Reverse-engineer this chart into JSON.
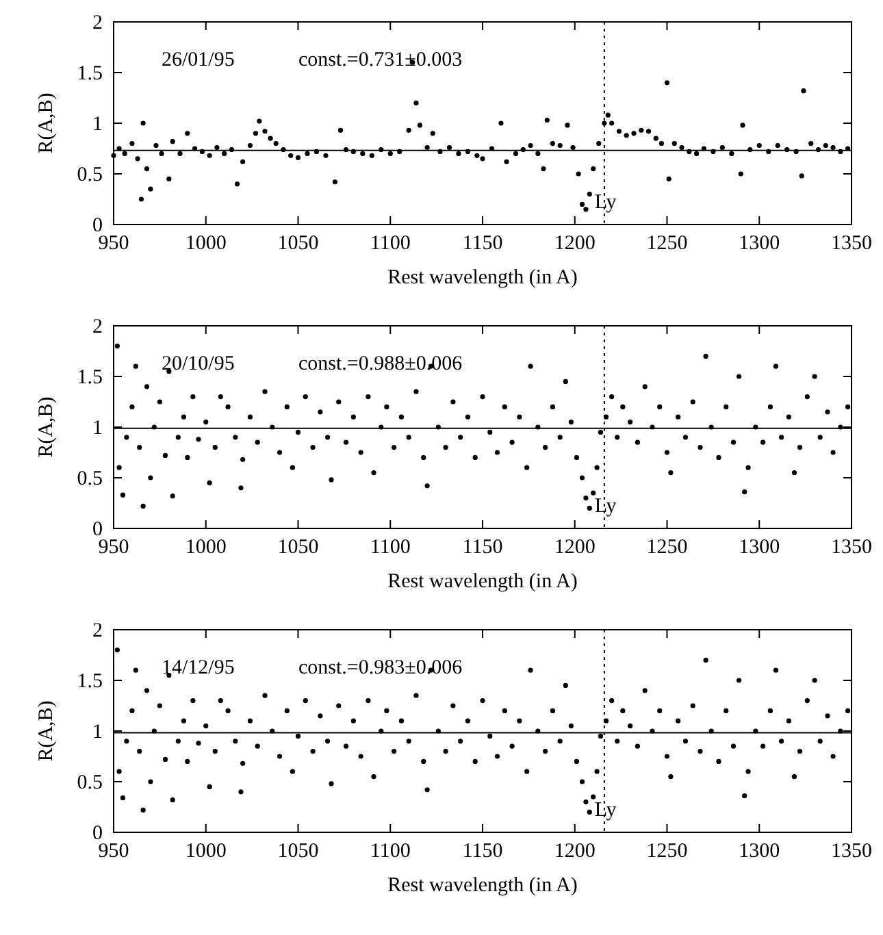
{
  "chart_data": [
    {
      "type": "scatter",
      "xlabel": "Rest wavelength (in A)",
      "ylabel": "R(A,B)",
      "xlim": [
        950,
        1350
      ],
      "ylim": [
        0,
        2
      ],
      "xticks": [
        950,
        1000,
        1050,
        1100,
        1150,
        1200,
        1250,
        1300,
        1350
      ],
      "yticks": [
        0,
        0.5,
        1,
        1.5,
        2
      ],
      "marker": "circle",
      "annotations": [
        "26/01/95",
        "const.=0.731±0.003"
      ],
      "ref_lines": [
        {
          "axis": "y",
          "value": 0.731,
          "line_style": "solid"
        },
        {
          "axis": "x",
          "value": 1216,
          "label": "Ly",
          "line_style": "dotted"
        }
      ],
      "series": [
        {
          "color": "#000000",
          "x": [
            950,
            953,
            956,
            960,
            963,
            965,
            966,
            968,
            970,
            973,
            976,
            980,
            982,
            986,
            990,
            994,
            998,
            1002,
            1006,
            1010,
            1014,
            1017,
            1020,
            1024,
            1027,
            1029,
            1032,
            1035,
            1038,
            1042,
            1046,
            1050,
            1055,
            1060,
            1065,
            1070,
            1073,
            1076,
            1080,
            1085,
            1090,
            1095,
            1100,
            1105,
            1110,
            1112,
            1114,
            1116,
            1120,
            1123,
            1127,
            1132,
            1137,
            1142,
            1147,
            1150,
            1155,
            1160,
            1163,
            1168,
            1172,
            1176,
            1180,
            1183,
            1185,
            1188,
            1192,
            1196,
            1199,
            1202,
            1204,
            1206,
            1208,
            1210,
            1213,
            1216,
            1218,
            1220,
            1224,
            1228,
            1232,
            1236,
            1240,
            1244,
            1247,
            1250,
            1251,
            1254,
            1258,
            1262,
            1266,
            1270,
            1275,
            1280,
            1285,
            1290,
            1291,
            1295,
            1300,
            1305,
            1310,
            1315,
            1320,
            1323,
            1324,
            1328,
            1332,
            1336,
            1340,
            1344,
            1348
          ],
          "values": [
            0.68,
            0.75,
            0.7,
            0.8,
            0.65,
            0.25,
            1.0,
            0.55,
            0.35,
            0.78,
            0.7,
            0.45,
            0.82,
            0.7,
            0.9,
            0.75,
            0.72,
            0.68,
            0.76,
            0.7,
            0.74,
            0.4,
            0.62,
            0.78,
            0.9,
            1.02,
            0.92,
            0.85,
            0.8,
            0.74,
            0.68,
            0.66,
            0.7,
            0.72,
            0.68,
            0.42,
            0.93,
            0.74,
            0.72,
            0.7,
            0.68,
            0.74,
            0.7,
            0.72,
            0.93,
            1.6,
            1.2,
            0.98,
            0.76,
            0.9,
            0.72,
            0.76,
            0.7,
            0.72,
            0.68,
            0.65,
            0.75,
            1.0,
            0.62,
            0.7,
            0.74,
            0.78,
            0.7,
            0.55,
            1.03,
            0.8,
            0.78,
            0.98,
            0.76,
            0.5,
            0.2,
            0.15,
            0.3,
            0.55,
            0.8,
            1.0,
            1.08,
            1.0,
            0.92,
            0.88,
            0.9,
            0.93,
            0.92,
            0.85,
            0.8,
            1.4,
            0.45,
            0.8,
            0.76,
            0.72,
            0.7,
            0.75,
            0.72,
            0.76,
            0.7,
            0.5,
            0.98,
            0.74,
            0.78,
            0.72,
            0.78,
            0.74,
            0.72,
            0.48,
            1.32,
            0.8,
            0.74,
            0.78,
            0.76,
            0.72,
            0.75
          ]
        }
      ]
    },
    {
      "type": "scatter",
      "xlabel": "Rest wavelength (in A)",
      "ylabel": "R(A,B)",
      "xlim": [
        950,
        1350
      ],
      "ylim": [
        0,
        2
      ],
      "xticks": [
        950,
        1000,
        1050,
        1100,
        1150,
        1200,
        1250,
        1300,
        1350
      ],
      "yticks": [
        0,
        0.5,
        1,
        1.5,
        2
      ],
      "marker": "circle",
      "annotations": [
        "20/10/95",
        "const.=0.988±0.006"
      ],
      "ref_lines": [
        {
          "axis": "y",
          "value": 0.988,
          "line_style": "solid"
        },
        {
          "axis": "x",
          "value": 1216,
          "label": "Ly",
          "line_style": "dotted"
        }
      ],
      "series": [
        {
          "color": "#000000",
          "x": [
            952,
            953,
            955,
            957,
            960,
            962,
            964,
            966,
            968,
            970,
            972,
            975,
            978,
            980,
            982,
            985,
            988,
            990,
            993,
            996,
            1000,
            1002,
            1005,
            1008,
            1012,
            1016,
            1019,
            1020,
            1024,
            1028,
            1032,
            1036,
            1040,
            1044,
            1047,
            1050,
            1054,
            1058,
            1062,
            1066,
            1068,
            1072,
            1076,
            1080,
            1084,
            1088,
            1091,
            1095,
            1098,
            1102,
            1106,
            1110,
            1114,
            1118,
            1120,
            1122,
            1126,
            1130,
            1134,
            1138,
            1142,
            1146,
            1150,
            1154,
            1158,
            1162,
            1166,
            1170,
            1174,
            1176,
            1180,
            1184,
            1188,
            1192,
            1195,
            1198,
            1201,
            1204,
            1206,
            1208,
            1210,
            1212,
            1214,
            1217,
            1220,
            1223,
            1226,
            1230,
            1234,
            1238,
            1242,
            1246,
            1250,
            1252,
            1256,
            1260,
            1264,
            1268,
            1271,
            1274,
            1278,
            1282,
            1286,
            1289,
            1292,
            1294,
            1298,
            1302,
            1306,
            1309,
            1312,
            1316,
            1319,
            1322,
            1326,
            1330,
            1333,
            1337,
            1340,
            1344,
            1348
          ],
          "values": [
            1.8,
            0.6,
            0.33,
            0.9,
            1.2,
            1.6,
            0.8,
            0.22,
            1.4,
            0.5,
            1.0,
            1.25,
            0.72,
            1.55,
            0.32,
            0.9,
            1.1,
            0.7,
            1.3,
            0.88,
            1.05,
            0.45,
            0.8,
            1.3,
            1.2,
            0.9,
            0.4,
            0.68,
            1.1,
            0.85,
            1.35,
            1.0,
            0.75,
            1.2,
            0.6,
            0.95,
            1.3,
            0.8,
            1.15,
            0.9,
            0.48,
            1.25,
            0.85,
            1.1,
            0.75,
            1.3,
            0.55,
            1.0,
            1.2,
            0.8,
            1.1,
            0.9,
            1.35,
            0.7,
            0.42,
            1.6,
            1.0,
            0.8,
            1.25,
            0.9,
            1.1,
            0.7,
            1.3,
            0.95,
            0.75,
            1.2,
            0.85,
            1.1,
            0.6,
            1.6,
            1.0,
            0.8,
            1.2,
            0.9,
            1.45,
            1.05,
            0.7,
            0.5,
            0.3,
            0.2,
            0.35,
            0.6,
            0.95,
            1.1,
            1.3,
            0.9,
            1.2,
            1.05,
            0.85,
            1.4,
            1.0,
            1.2,
            0.75,
            0.55,
            1.1,
            0.9,
            1.25,
            0.8,
            1.7,
            1.0,
            0.7,
            1.2,
            0.85,
            1.5,
            0.36,
            0.6,
            1.0,
            0.85,
            1.2,
            1.6,
            0.9,
            1.1,
            0.55,
            0.8,
            1.3,
            1.5,
            0.9,
            1.15,
            0.75,
            1.0,
            1.2
          ]
        }
      ]
    },
    {
      "type": "scatter",
      "xlabel": "Rest wavelength (in A)",
      "ylabel": "R(A,B)",
      "xlim": [
        950,
        1350
      ],
      "ylim": [
        0,
        2
      ],
      "xticks": [
        950,
        1000,
        1050,
        1100,
        1150,
        1200,
        1250,
        1300,
        1350
      ],
      "yticks": [
        0,
        0.5,
        1,
        1.5,
        2
      ],
      "marker": "circle",
      "annotations": [
        "14/12/95",
        "const.=0.983±0.006"
      ],
      "ref_lines": [
        {
          "axis": "y",
          "value": 0.983,
          "line_style": "solid"
        },
        {
          "axis": "x",
          "value": 1216,
          "label": "Ly",
          "line_style": "dotted"
        }
      ],
      "series": [
        {
          "color": "#000000",
          "x": [
            952,
            953,
            955,
            957,
            960,
            962,
            964,
            966,
            968,
            970,
            972,
            975,
            978,
            980,
            982,
            985,
            988,
            990,
            993,
            996,
            1000,
            1002,
            1005,
            1008,
            1012,
            1016,
            1019,
            1020,
            1024,
            1028,
            1032,
            1036,
            1040,
            1044,
            1047,
            1050,
            1054,
            1058,
            1062,
            1066,
            1068,
            1072,
            1076,
            1080,
            1084,
            1088,
            1091,
            1095,
            1098,
            1102,
            1106,
            1110,
            1114,
            1118,
            1120,
            1122,
            1126,
            1130,
            1134,
            1138,
            1142,
            1146,
            1150,
            1154,
            1158,
            1162,
            1166,
            1170,
            1174,
            1176,
            1180,
            1184,
            1188,
            1192,
            1195,
            1198,
            1201,
            1204,
            1206,
            1208,
            1210,
            1212,
            1214,
            1217,
            1220,
            1223,
            1226,
            1230,
            1234,
            1238,
            1242,
            1246,
            1250,
            1252,
            1256,
            1260,
            1264,
            1268,
            1271,
            1274,
            1278,
            1282,
            1286,
            1289,
            1292,
            1294,
            1298,
            1302,
            1306,
            1309,
            1312,
            1316,
            1319,
            1322,
            1326,
            1330,
            1333,
            1337,
            1340,
            1344,
            1348
          ],
          "values": [
            1.8,
            0.6,
            0.34,
            0.9,
            1.2,
            1.6,
            0.8,
            0.22,
            1.4,
            0.5,
            1.0,
            1.25,
            0.72,
            1.55,
            0.32,
            0.9,
            1.1,
            0.7,
            1.3,
            0.88,
            1.05,
            0.45,
            0.8,
            1.3,
            1.2,
            0.9,
            0.4,
            0.68,
            1.1,
            0.85,
            1.35,
            1.0,
            0.75,
            1.2,
            0.6,
            0.95,
            1.3,
            0.8,
            1.15,
            0.9,
            0.48,
            1.25,
            0.85,
            1.1,
            0.75,
            1.3,
            0.55,
            1.0,
            1.2,
            0.8,
            1.1,
            0.9,
            1.35,
            0.7,
            0.42,
            1.6,
            1.0,
            0.8,
            1.25,
            0.9,
            1.1,
            0.7,
            1.3,
            0.95,
            0.75,
            1.2,
            0.85,
            1.1,
            0.6,
            1.6,
            1.0,
            0.8,
            1.2,
            0.9,
            1.45,
            1.05,
            0.7,
            0.5,
            0.3,
            0.2,
            0.35,
            0.6,
            0.95,
            1.1,
            1.3,
            0.9,
            1.2,
            1.05,
            0.85,
            1.4,
            1.0,
            1.2,
            0.75,
            0.55,
            1.1,
            0.9,
            1.25,
            0.8,
            1.7,
            1.0,
            0.7,
            1.2,
            0.85,
            1.5,
            0.36,
            0.6,
            1.0,
            0.85,
            1.2,
            1.6,
            0.9,
            1.1,
            0.55,
            0.8,
            1.3,
            1.5,
            0.9,
            1.15,
            0.75,
            1.0,
            1.2
          ]
        }
      ]
    }
  ]
}
